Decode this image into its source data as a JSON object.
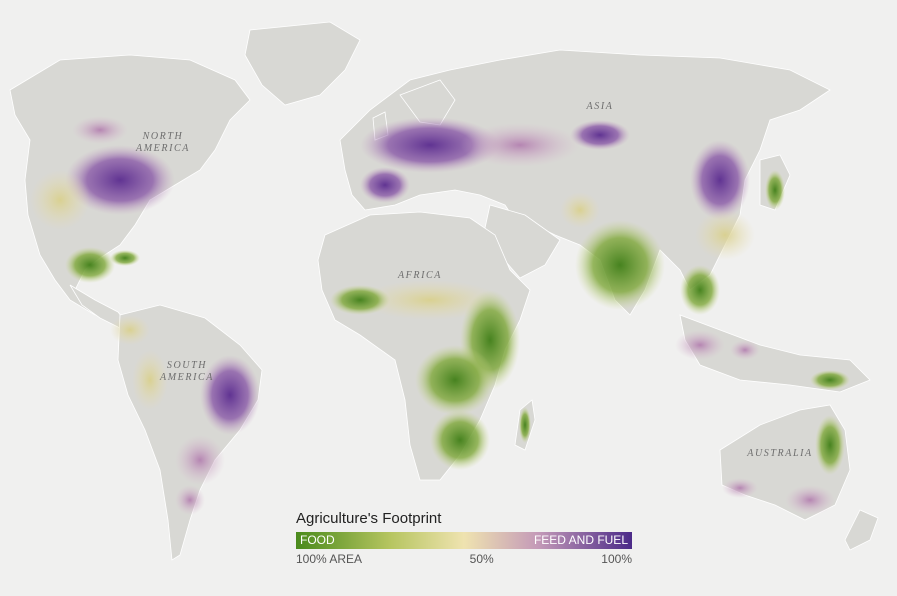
{
  "map": {
    "continent_labels": {
      "north_america": "NORTH\nAMERICA",
      "south_america": "SOUTH\nAMERICA",
      "africa": "AFRICA",
      "asia": "ASIA",
      "australia": "AUSTRALIA"
    }
  },
  "legend": {
    "title": "Agriculture's Footprint",
    "food_label": "FOOD",
    "feed_label": "FEED AND FUEL",
    "ticks": [
      "100% AREA",
      "50%",
      "100%"
    ],
    "colors": {
      "food": "#4a8a1c",
      "mid": "#efe3b0",
      "feed": "#4b2a88",
      "land": "#d8d8d4",
      "ocean": "#f0f0ef"
    }
  }
}
